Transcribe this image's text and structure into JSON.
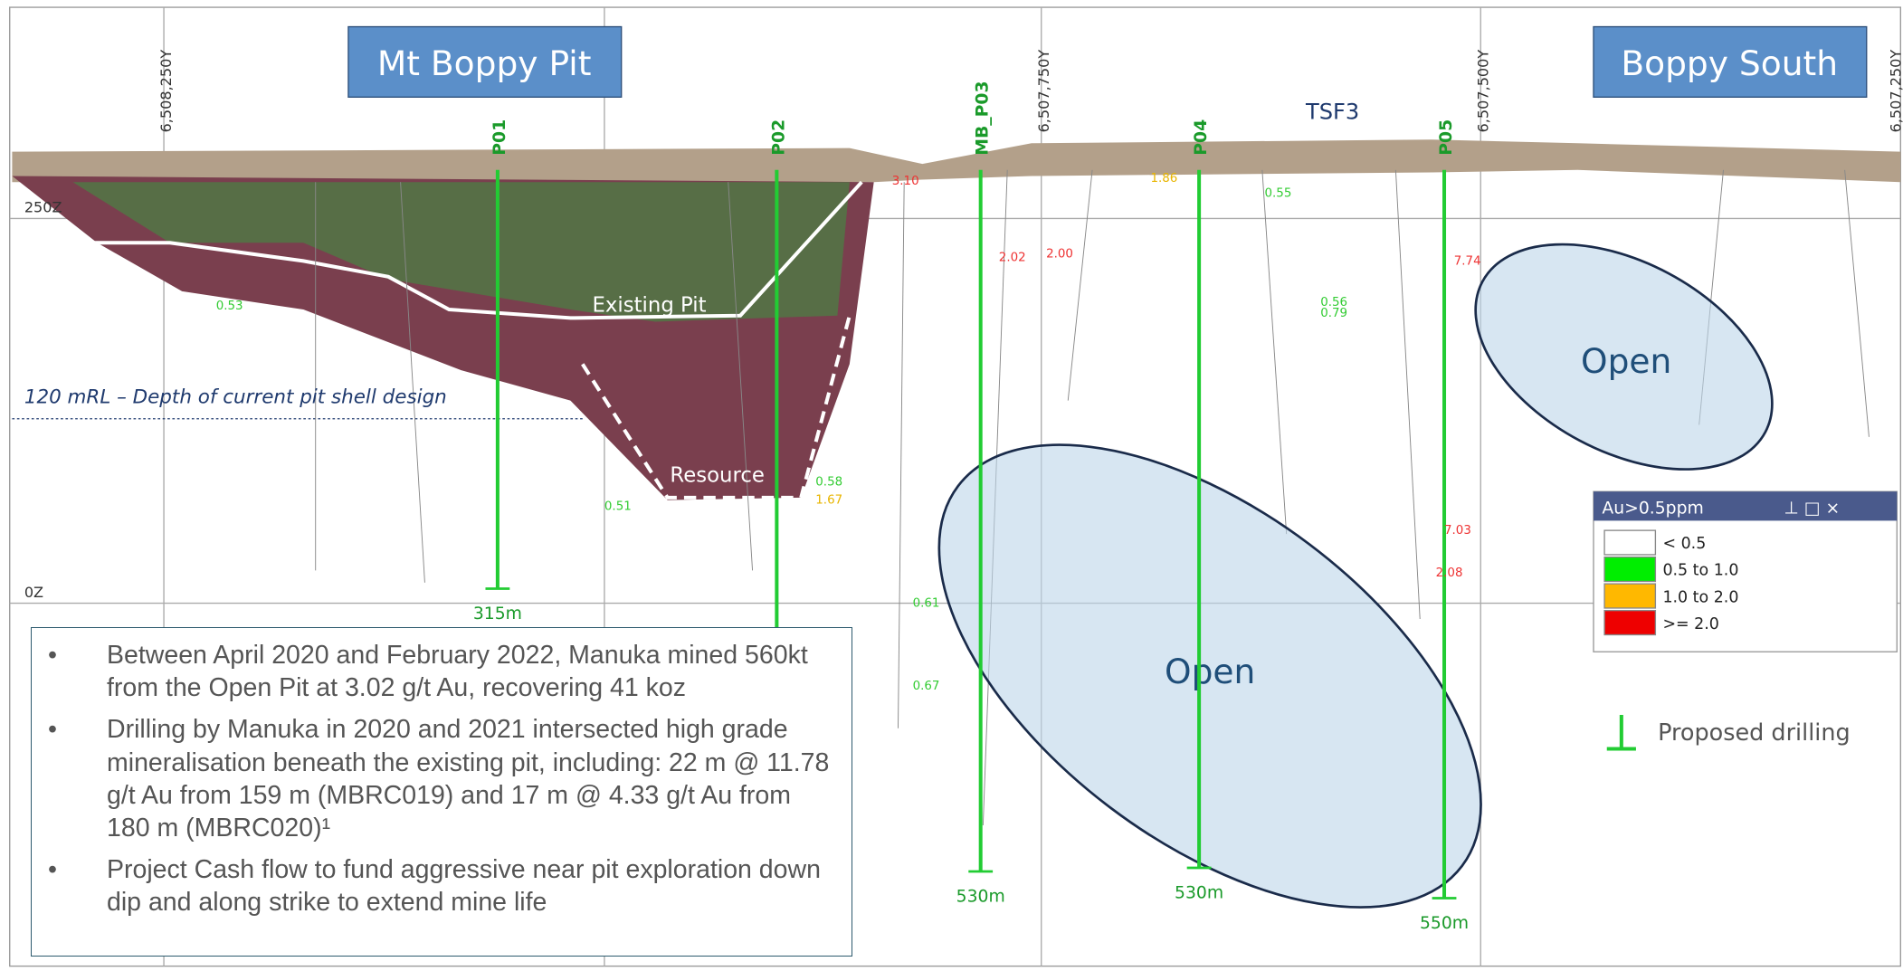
{
  "titles": [
    "Mt Boppy Pit",
    "Boppy South"
  ],
  "tsf_label": "TSF3",
  "northings": [
    "6,508,250Y",
    "6,507,750Y",
    "6,507,500Y",
    "6,507,250Y"
  ],
  "elevations": [
    "250Z",
    "0Z"
  ],
  "pit_labels": {
    "existing_pit": "Existing Pit",
    "resource": "Resource",
    "depth_line": "120 mRL – Depth of current pit shell design"
  },
  "open_labels": [
    "Open",
    "Open"
  ],
  "proposed_holes": [
    {
      "name": "P01",
      "depth": "315m"
    },
    {
      "name": "P02",
      "depth": null
    },
    {
      "name": "MB_P03",
      "depth": "530m"
    },
    {
      "name": "P04",
      "depth": "530m"
    },
    {
      "name": "P05",
      "depth": "550m"
    }
  ],
  "assays": [
    "3.10",
    "2.02",
    "2.00",
    "1.86",
    "0.55",
    "7.74",
    "0.56",
    "0.79",
    "7.03",
    "2.08",
    "0.61",
    "0.67",
    "1.67",
    "0.53",
    "0.58",
    "0.51"
  ],
  "legend": {
    "title": "Au>0.5ppm",
    "items": [
      "< 0.5",
      "0.5 to 1.0",
      "1.0 to 2.0",
      ">= 2.0"
    ]
  },
  "proposed_drilling": "Proposed drilling",
  "bullets": [
    "Between April 2020 and February 2022, Manuka mined 560kt from the Open Pit at 3.02 g/t Au, recovering 41 koz",
    "Drilling by Manuka in 2020 and 2021 intersected high grade mineralisation beneath the existing pit, including: 22 m @ 11.78 g/t Au from 159 m (MBRC019) and 17 m @ 4.33 g/t Au from 180 m (MBRC020)¹",
    "Project Cash flow to fund aggressive near pit exploration down dip and along strike to extend mine life"
  ]
}
